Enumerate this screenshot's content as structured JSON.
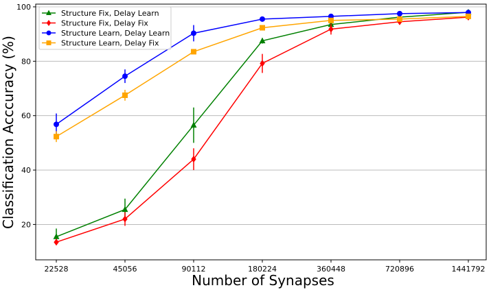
{
  "chart_data": {
    "type": "line",
    "xlabel": "Number of Synapses",
    "ylabel": "Classification Acccuracy (%)",
    "x_scale": "log2",
    "categories": [
      "22528",
      "45056",
      "90112",
      "180224",
      "360448",
      "720896",
      "1441792"
    ],
    "x": [
      22528,
      45056,
      90112,
      180224,
      360448,
      720896,
      1441792
    ],
    "yticks": [
      "20",
      "40",
      "60",
      "80",
      "100"
    ],
    "ylim": [
      7,
      101
    ],
    "grid": "horizontal",
    "legend_position": "top-left",
    "series": [
      {
        "name": "Structure Fix, Delay Learn",
        "color": "#008000",
        "marker": "triangle",
        "values": [
          15.5,
          25.5,
          56.5,
          87.5,
          93.5,
          96.2,
          98.0
        ],
        "errors": [
          3.0,
          4.0,
          6.5,
          1.0,
          1.0,
          0.8,
          0.8
        ]
      },
      {
        "name": "Structure Fix, Delay Fix",
        "color": "#ff0000",
        "marker": "diamond",
        "values": [
          13.5,
          22.0,
          44.0,
          79.2,
          91.8,
          94.5,
          96.2
        ],
        "errors": [
          1.0,
          2.5,
          4.0,
          3.5,
          2.0,
          1.0,
          0.8
        ]
      },
      {
        "name": "Structure Learn, Delay Learn",
        "color": "#0000ff",
        "marker": "circle",
        "values": [
          56.8,
          74.5,
          90.3,
          95.5,
          96.5,
          97.5,
          97.9
        ],
        "errors": [
          4.0,
          2.5,
          3.0,
          0.5,
          0.5,
          0.5,
          0.5
        ]
      },
      {
        "name": "Structure Learn, Delay Fix",
        "color": "#ffa500",
        "marker": "square",
        "values": [
          52.3,
          67.5,
          83.5,
          92.3,
          95.0,
          95.5,
          96.5
        ],
        "errors": [
          2.0,
          2.0,
          0.8,
          0.5,
          0.5,
          0.5,
          0.5
        ]
      }
    ]
  }
}
